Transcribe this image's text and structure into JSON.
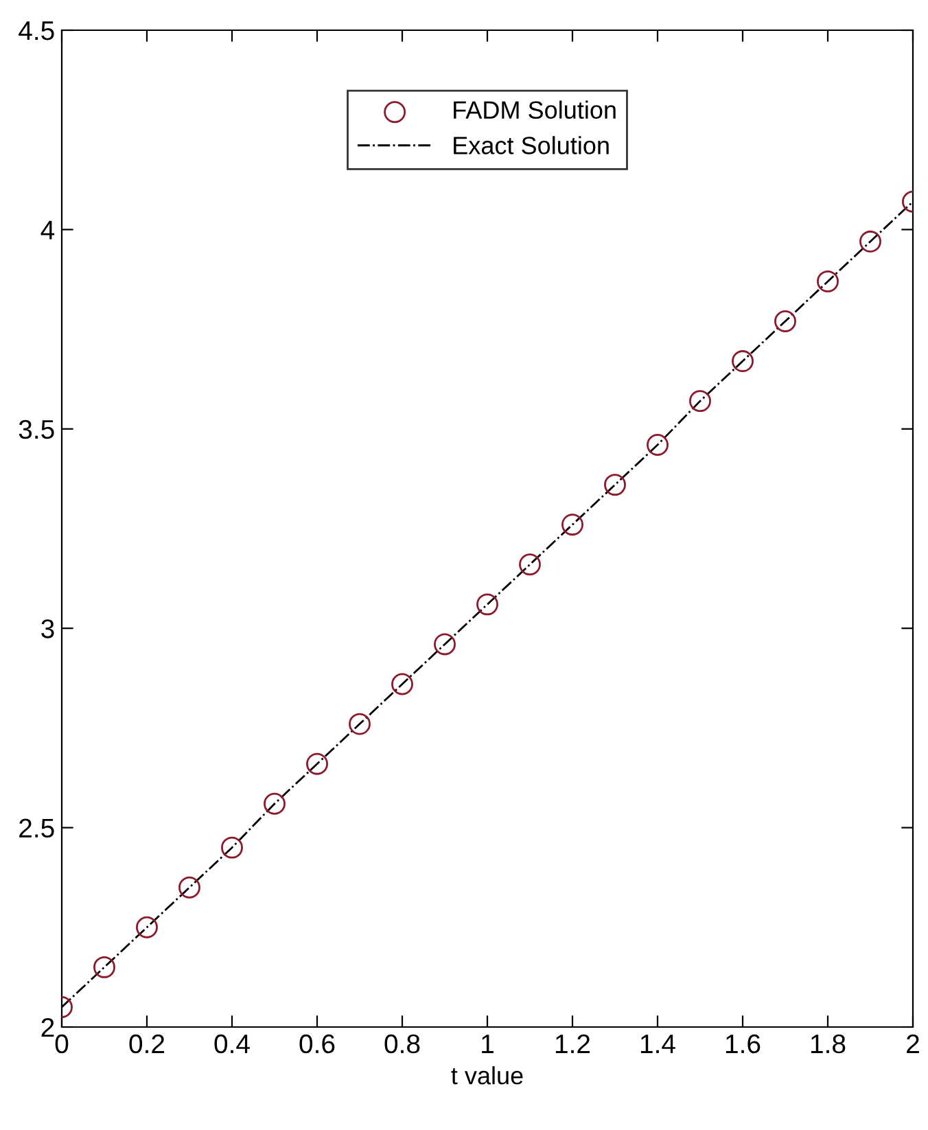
{
  "chart_data": {
    "type": "line",
    "xlabel": "t value",
    "x": [
      0,
      0.1,
      0.2,
      0.3,
      0.4,
      0.5,
      0.6,
      0.7,
      0.8,
      0.9,
      1,
      1.1,
      1.2,
      1.3,
      1.4,
      1.5,
      1.6,
      1.7,
      1.8,
      1.9,
      2
    ],
    "series": [
      {
        "name": "FADM Solution",
        "type": "scatter",
        "marker": "circle",
        "color": "#8b1a2a",
        "values": [
          2.05,
          2.15,
          2.25,
          2.35,
          2.45,
          2.56,
          2.66,
          2.76,
          2.86,
          2.96,
          3.06,
          3.16,
          3.26,
          3.36,
          3.46,
          3.57,
          3.67,
          3.77,
          3.87,
          3.97,
          4.07
        ]
      },
      {
        "name": "Exact Solution",
        "line_style": "dashdot",
        "color": "#000000",
        "values": [
          2.05,
          2.15,
          2.25,
          2.35,
          2.45,
          2.56,
          2.66,
          2.76,
          2.86,
          2.96,
          3.06,
          3.16,
          3.26,
          3.36,
          3.46,
          3.57,
          3.67,
          3.77,
          3.87,
          3.97,
          4.07
        ]
      }
    ],
    "xlim": [
      0,
      2
    ],
    "xticks": [
      0,
      0.2,
      0.4,
      0.6,
      0.8,
      1,
      1.2,
      1.4,
      1.6,
      1.8,
      2
    ],
    "ylim": [
      2,
      4.5
    ],
    "yticks": [
      2,
      2.5,
      3,
      3.5,
      4,
      4.5
    ],
    "grid": false,
    "legend": "top center"
  }
}
